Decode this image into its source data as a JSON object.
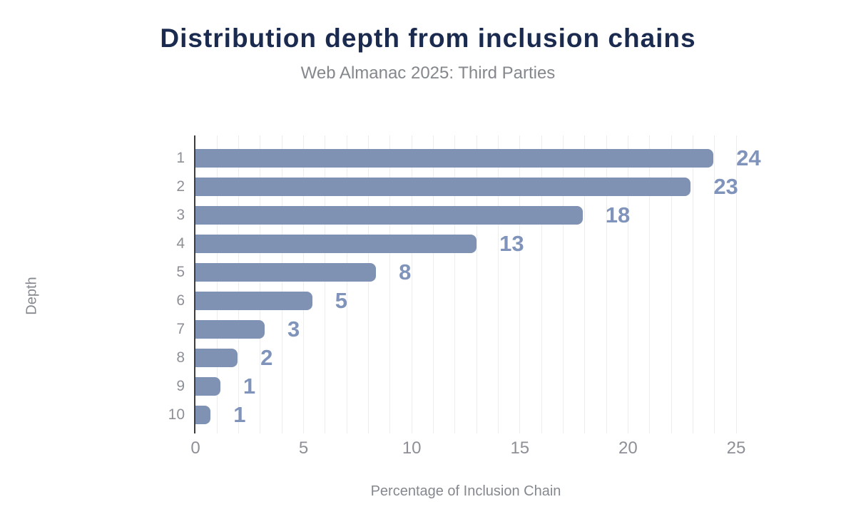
{
  "chart_data": {
    "type": "bar",
    "orientation": "horizontal",
    "title": "Distribution depth from inclusion chains",
    "subtitle": "Web Almanac 2025: Third Parties",
    "xlabel": "Percentage of Inclusion Chain",
    "ylabel": "Depth",
    "categories": [
      "1",
      "2",
      "3",
      "4",
      "5",
      "6",
      "7",
      "8",
      "9",
      "10"
    ],
    "values": [
      24,
      23,
      18,
      13,
      8,
      5,
      3,
      2,
      1,
      1
    ],
    "bar_lengths_pct": [
      23.95,
      22.9,
      17.9,
      13.0,
      8.35,
      5.4,
      3.2,
      1.95,
      1.15,
      0.7
    ],
    "x_ticks": [
      0,
      5,
      10,
      15,
      20,
      25
    ],
    "xlim": [
      0,
      25
    ],
    "grid_interval": 1,
    "grid": "vertical-only",
    "legend": "none",
    "colors": {
      "bar": "#8092b4",
      "value_label": "#8094bb",
      "title": "#1b2b50",
      "subtitle": "#84878c",
      "tick_text": "#8d9096",
      "axis_title": "#85888e",
      "gridline": "#ededed",
      "axis_line": "#3d3d3d",
      "background": "#ffffff"
    }
  }
}
